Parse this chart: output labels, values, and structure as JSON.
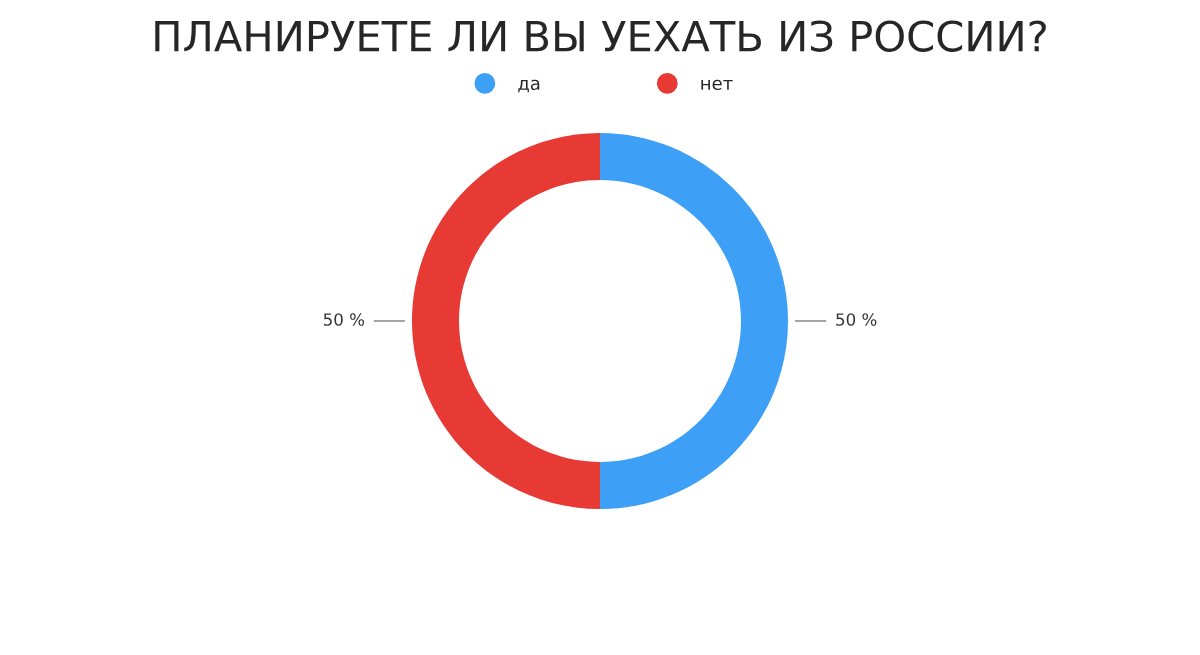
{
  "chart_data": {
    "type": "donut",
    "title": "ПЛАНИРУЕТЕ ЛИ ВЫ УЕХАТЬ ИЗ РОССИИ?",
    "categories": [
      "да",
      "нет"
    ],
    "values": [
      50,
      50
    ],
    "colors": [
      "#3d9ff5",
      "#e83a35"
    ],
    "value_labels": [
      "50 %",
      "50 %"
    ],
    "legend": "top"
  }
}
